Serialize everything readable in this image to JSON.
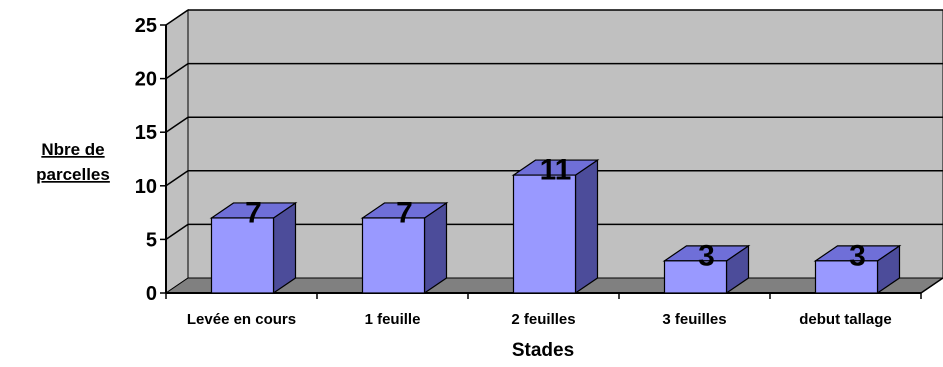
{
  "chart_data": {
    "type": "bar",
    "categories": [
      "Levée en cours",
      "1 feuille",
      "2 feuilles",
      "3 feuilles",
      "debut tallage"
    ],
    "values": [
      7,
      7,
      11,
      3,
      3
    ],
    "data_labels": [
      "7",
      "7",
      "11",
      "3",
      "3"
    ],
    "title": "",
    "xlabel": "Stades",
    "ylabel_line1": "Nbre de",
    "ylabel_line2": "parcelles",
    "ylim": [
      0,
      25
    ],
    "yticks": [
      "0",
      "5",
      "10",
      "15",
      "20",
      "25"
    ],
    "grid": true,
    "style": "3d",
    "colors": {
      "bar_front": "#9999ff",
      "bar_side": "#4c4c9a",
      "bar_top": "#6f6fd8",
      "wall": "#c0c0c0",
      "floor": "#808080"
    }
  }
}
